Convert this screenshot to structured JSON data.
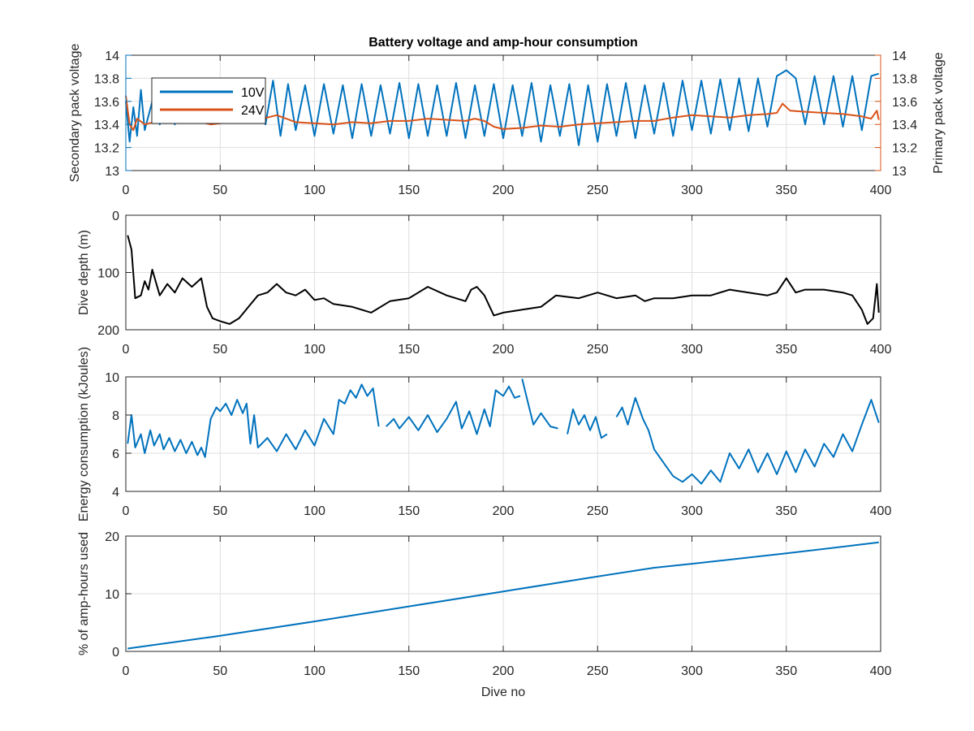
{
  "colors": {
    "blue": "#0072BD",
    "orange": "#D95319",
    "black": "#000000",
    "axis": "#262626",
    "grid": "#DFDFDF"
  },
  "chart_data": [
    {
      "type": "line",
      "title": "Battery voltage and amp-hour consumption",
      "xlabel": "",
      "xlim": [
        0,
        400
      ],
      "xticks": [
        "0",
        "50",
        "100",
        "150",
        "200",
        "250",
        "300",
        "350",
        "400"
      ],
      "grid": true,
      "legend": {
        "placement": "top-left",
        "entries": [
          "10V",
          "24V"
        ]
      },
      "left_axis": {
        "label": "Secondary pack voltage",
        "ylim": [
          13,
          14
        ],
        "ticks": [
          "13",
          "13.2",
          "13.4",
          "13.6",
          "13.8",
          "14"
        ],
        "color": "#0072BD"
      },
      "right_axis": {
        "label": "Primary pack voltage",
        "ylim": [
          13,
          14
        ],
        "ticks": [
          "13",
          "13.2",
          "13.4",
          "13.6",
          "13.8",
          "14"
        ],
        "color": "#D95319"
      },
      "series": [
        {
          "name": "10V",
          "axis": "left",
          "x": [
            0,
            2,
            4,
            6,
            8,
            10,
            14,
            18,
            22,
            26,
            30,
            35,
            40,
            45,
            50,
            55,
            60,
            65,
            70,
            74,
            78,
            82,
            86,
            90,
            95,
            100,
            105,
            110,
            115,
            120,
            125,
            130,
            135,
            140,
            145,
            150,
            155,
            160,
            165,
            170,
            175,
            180,
            185,
            190,
            195,
            200,
            205,
            210,
            215,
            220,
            225,
            230,
            235,
            240,
            245,
            250,
            255,
            260,
            265,
            270,
            275,
            280,
            285,
            290,
            295,
            300,
            305,
            310,
            315,
            320,
            325,
            330,
            335,
            340,
            345,
            350,
            355,
            360,
            365,
            370,
            375,
            380,
            385,
            390,
            395,
            399
          ],
          "values": [
            13.6,
            13.25,
            13.55,
            13.3,
            13.7,
            13.35,
            13.6,
            13.4,
            13.65,
            13.4,
            13.7,
            13.45,
            13.68,
            13.5,
            13.72,
            13.48,
            13.7,
            13.45,
            13.72,
            13.4,
            13.78,
            13.3,
            13.75,
            13.35,
            13.74,
            13.3,
            13.75,
            13.32,
            13.74,
            13.28,
            13.75,
            13.3,
            13.74,
            13.32,
            13.76,
            13.28,
            13.75,
            13.3,
            13.74,
            13.3,
            13.76,
            13.28,
            13.74,
            13.3,
            13.75,
            13.28,
            13.74,
            13.3,
            13.76,
            13.25,
            13.74,
            13.3,
            13.75,
            13.22,
            13.74,
            13.25,
            13.75,
            13.3,
            13.76,
            13.28,
            13.74,
            13.32,
            13.76,
            13.3,
            13.78,
            13.35,
            13.78,
            13.32,
            13.79,
            13.35,
            13.8,
            13.34,
            13.8,
            13.38,
            13.82,
            13.87,
            13.8,
            13.4,
            13.82,
            13.4,
            13.82,
            13.38,
            13.82,
            13.35,
            13.82,
            13.84
          ]
        },
        {
          "name": "24V",
          "axis": "right",
          "x": [
            0,
            2,
            4,
            6,
            10,
            15,
            20,
            25,
            30,
            35,
            40,
            45,
            50,
            55,
            60,
            65,
            70,
            75,
            80,
            85,
            90,
            100,
            110,
            120,
            130,
            140,
            150,
            160,
            170,
            180,
            185,
            190,
            195,
            200,
            210,
            220,
            230,
            240,
            250,
            260,
            270,
            280,
            290,
            300,
            310,
            320,
            330,
            340,
            345,
            348,
            352,
            360,
            370,
            380,
            390,
            395,
            398,
            399
          ],
          "values": [
            13.65,
            13.4,
            13.35,
            13.45,
            13.4,
            13.42,
            13.44,
            13.45,
            13.44,
            13.43,
            13.42,
            13.4,
            13.41,
            13.42,
            13.42,
            13.43,
            13.44,
            13.46,
            13.48,
            13.45,
            13.42,
            13.41,
            13.4,
            13.42,
            13.41,
            13.43,
            13.43,
            13.45,
            13.44,
            13.43,
            13.45,
            13.43,
            13.38,
            13.36,
            13.37,
            13.39,
            13.38,
            13.4,
            13.41,
            13.42,
            13.43,
            13.43,
            13.46,
            13.48,
            13.47,
            13.46,
            13.48,
            13.49,
            13.5,
            13.58,
            13.52,
            13.51,
            13.5,
            13.49,
            13.47,
            13.45,
            13.52,
            13.44
          ]
        }
      ]
    },
    {
      "type": "line",
      "title": "",
      "xlabel": "",
      "xlim": [
        0,
        400
      ],
      "xticks": [
        "0",
        "50",
        "100",
        "150",
        "200",
        "250",
        "300",
        "350",
        "400"
      ],
      "grid": true,
      "ylabel": "Dive depth (m)",
      "ylim": [
        0,
        200
      ],
      "y_reversed": true,
      "yticks": [
        "0",
        "100",
        "200"
      ],
      "series": [
        {
          "color": "#000000",
          "x": [
            1,
            3,
            5,
            8,
            10,
            12,
            14,
            18,
            22,
            26,
            30,
            35,
            40,
            43,
            46,
            50,
            55,
            60,
            65,
            70,
            75,
            80,
            85,
            90,
            95,
            100,
            105,
            110,
            120,
            130,
            140,
            150,
            155,
            160,
            170,
            180,
            183,
            186,
            190,
            195,
            200,
            210,
            220,
            228,
            240,
            250,
            255,
            260,
            270,
            275,
            280,
            290,
            300,
            310,
            320,
            330,
            340,
            345,
            350,
            355,
            360,
            370,
            380,
            385,
            390,
            393,
            396,
            398,
            399
          ],
          "values": [
            35,
            60,
            145,
            140,
            115,
            130,
            95,
            140,
            120,
            135,
            110,
            125,
            110,
            160,
            180,
            185,
            190,
            180,
            160,
            140,
            135,
            120,
            135,
            140,
            130,
            148,
            145,
            155,
            160,
            170,
            150,
            145,
            135,
            125,
            140,
            150,
            130,
            125,
            140,
            175,
            170,
            165,
            160,
            140,
            145,
            135,
            140,
            145,
            140,
            150,
            145,
            145,
            140,
            140,
            130,
            135,
            140,
            135,
            110,
            135,
            130,
            130,
            135,
            140,
            165,
            190,
            180,
            120,
            170
          ]
        }
      ]
    },
    {
      "type": "line",
      "title": "",
      "xlabel": "",
      "xlim": [
        0,
        400
      ],
      "xticks": [
        "0",
        "50",
        "100",
        "150",
        "200",
        "250",
        "300",
        "350",
        "400"
      ],
      "grid": true,
      "ylabel": "Energy consumption (kJoules)",
      "ylim": [
        4,
        10
      ],
      "yticks": [
        "4",
        "6",
        "8",
        "10"
      ],
      "series": [
        {
          "color": "#0072BD",
          "segments": [
            {
              "x": [
                1,
                3,
                5,
                8,
                10,
                13,
                15,
                18,
                20,
                23,
                26,
                29,
                32,
                35,
                38,
                40,
                42,
                45,
                48,
                50,
                53,
                56,
                59,
                62,
                64,
                66,
                68,
                70,
                75,
                80,
                85,
                90,
                95,
                100,
                105,
                110,
                113,
                116,
                119,
                122,
                125,
                128,
                131,
                134
              ],
              "values": [
                6.5,
                8.0,
                6.3,
                7.0,
                6.0,
                7.2,
                6.4,
                7.0,
                6.2,
                6.8,
                6.1,
                6.7,
                6.0,
                6.6,
                5.9,
                6.3,
                5.8,
                7.8,
                8.4,
                8.2,
                8.6,
                8.0,
                8.8,
                8.1,
                8.6,
                6.5,
                8.0,
                6.3,
                6.8,
                6.1,
                7.0,
                6.2,
                7.2,
                6.4,
                7.8,
                7.0,
                8.8,
                8.6,
                9.3,
                8.9,
                9.6,
                9.0,
                9.4,
                7.4
              ]
            },
            {
              "x": [
                138,
                140,
                142,
                145,
                150,
                155,
                160,
                165,
                170,
                175,
                178,
                182,
                186,
                190,
                193,
                196,
                200,
                203,
                206,
                209
              ],
              "values": [
                7.4,
                7.6,
                7.8,
                7.3,
                7.9,
                7.2,
                8.0,
                7.1,
                7.8,
                8.7,
                7.3,
                8.2,
                7.0,
                8.3,
                7.4,
                9.3,
                9.0,
                9.5,
                8.9,
                9.0
              ]
            },
            {
              "x": [
                210,
                213,
                216,
                220,
                225,
                229
              ],
              "values": [
                9.9,
                8.7,
                7.5,
                8.1,
                7.4,
                7.3
              ]
            },
            {
              "x": [
                234,
                237,
                240,
                243,
                246,
                249,
                252,
                255
              ],
              "values": [
                7.0,
                8.3,
                7.5,
                8.0,
                7.2,
                7.9,
                6.8,
                7.0
              ]
            },
            {
              "x": [
                260,
                263,
                266,
                270,
                274,
                277,
                280,
                285,
                290,
                295,
                300,
                305,
                310,
                315,
                320,
                325,
                330,
                335,
                340,
                345,
                350,
                355,
                360,
                365,
                370,
                375,
                380,
                385,
                390,
                395,
                399
              ],
              "values": [
                7.9,
                8.4,
                7.5,
                8.9,
                7.8,
                7.2,
                6.2,
                5.5,
                4.8,
                4.5,
                4.9,
                4.4,
                5.1,
                4.5,
                6.0,
                5.2,
                6.2,
                5.0,
                6.0,
                4.9,
                6.1,
                5.0,
                6.2,
                5.3,
                6.5,
                5.8,
                7.0,
                6.1,
                7.5,
                8.8,
                7.6
              ]
            }
          ]
        }
      ]
    },
    {
      "type": "line",
      "title": "",
      "xlabel": "Dive no",
      "xlim": [
        0,
        400
      ],
      "xticks": [
        "0",
        "50",
        "100",
        "150",
        "200",
        "250",
        "300",
        "350",
        "400"
      ],
      "grid": true,
      "ylabel": "% of amp-hours used",
      "ylim": [
        0,
        20
      ],
      "yticks": [
        "0",
        "10",
        "20"
      ],
      "series": [
        {
          "color": "#0072BD",
          "x": [
            1,
            50,
            100,
            150,
            200,
            250,
            280,
            300,
            350,
            399
          ],
          "values": [
            0.5,
            2.7,
            5.2,
            7.8,
            10.4,
            13.0,
            14.5,
            15.2,
            17.0,
            18.9
          ]
        }
      ]
    }
  ]
}
